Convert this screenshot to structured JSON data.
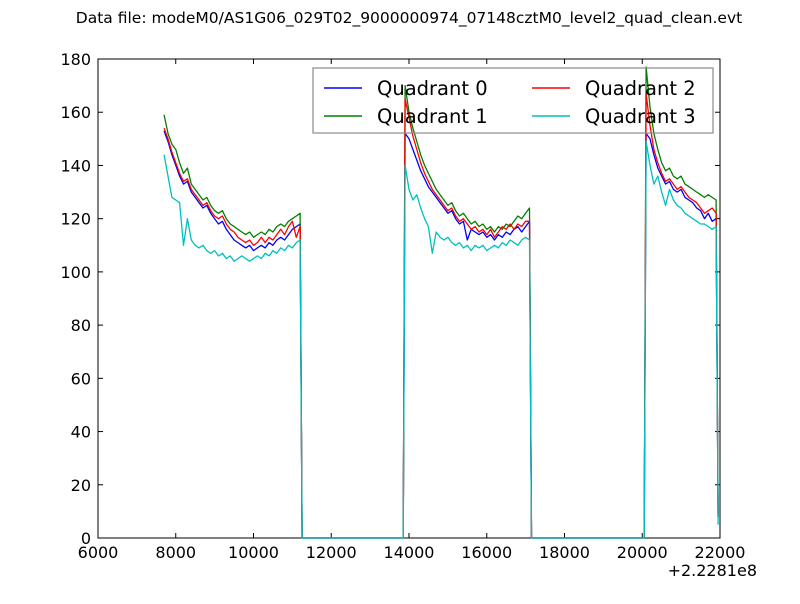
{
  "figure": {
    "title": "Data file: modeM0/AS1G06_029T02_9000000974_07148cztM0_level2_quad_clean.evt",
    "background": "#ffffff"
  },
  "chart_data": {
    "type": "line",
    "title": "Data file: modeM0/AS1G06_029T02_9000000974_07148cztM0_level2_quad_clean.evt",
    "xlabel": "",
    "ylabel": "",
    "xlim": [
      6000,
      22000
    ],
    "ylim": [
      0,
      180
    ],
    "x_ticks": [
      6000,
      8000,
      10000,
      12000,
      14000,
      16000,
      18000,
      20000,
      22000
    ],
    "y_ticks": [
      0,
      20,
      40,
      60,
      80,
      100,
      120,
      140,
      160,
      180
    ],
    "x_offset_label": "+2.2281e8",
    "grid": false,
    "legend": {
      "position": "upper center",
      "columns": 2,
      "frame": true,
      "transparent_background": true
    },
    "x": [
      7700,
      7800,
      7900,
      8000,
      8100,
      8200,
      8300,
      8400,
      8500,
      8600,
      8700,
      8800,
      8900,
      9000,
      9100,
      9200,
      9300,
      9400,
      9500,
      9600,
      9700,
      9800,
      9900,
      10000,
      10100,
      10200,
      10300,
      10400,
      10500,
      10600,
      10700,
      10800,
      10900,
      11000,
      11100,
      11200,
      11250,
      11500,
      12000,
      12500,
      13000,
      13500,
      13850,
      13900,
      14000,
      14100,
      14200,
      14300,
      14400,
      14500,
      14600,
      14700,
      14800,
      14900,
      15000,
      15100,
      15200,
      15300,
      15400,
      15500,
      15600,
      15700,
      15800,
      15900,
      16000,
      16100,
      16200,
      16300,
      16400,
      16500,
      16600,
      16700,
      16800,
      16900,
      17000,
      17100,
      17150,
      17500,
      18000,
      18500,
      19000,
      19500,
      20050,
      20100,
      20200,
      20300,
      20400,
      20500,
      20600,
      20700,
      20800,
      20900,
      21000,
      21100,
      21200,
      21300,
      21400,
      21500,
      21600,
      21700,
      21800,
      21900,
      21950
    ],
    "series": [
      {
        "name": "Quadrant 0",
        "color": "#0000ff",
        "values": [
          153,
          149,
          144,
          140,
          136,
          133,
          134,
          130,
          128,
          126,
          124,
          125,
          122,
          120,
          118,
          119,
          116,
          114,
          112,
          111,
          110,
          109,
          110,
          108,
          109,
          110,
          109,
          111,
          110,
          112,
          113,
          112,
          114,
          116,
          117,
          118,
          0,
          0,
          0,
          0,
          0,
          0,
          0,
          152,
          150,
          146,
          142,
          138,
          135,
          132,
          130,
          128,
          126,
          124,
          122,
          123,
          120,
          118,
          119,
          112,
          116,
          115,
          114,
          115,
          113,
          114,
          112,
          114,
          113,
          115,
          114,
          116,
          117,
          115,
          117,
          119,
          0,
          0,
          0,
          0,
          0,
          0,
          0,
          152,
          150,
          144,
          139,
          136,
          133,
          134,
          131,
          130,
          131,
          128,
          127,
          126,
          124,
          123,
          120,
          122,
          119,
          120,
          8
        ]
      },
      {
        "name": "Quadrant 1",
        "color": "#008000",
        "values": [
          159,
          152,
          148,
          146,
          141,
          137,
          139,
          133,
          131,
          129,
          127,
          128,
          125,
          123,
          122,
          123,
          120,
          118,
          117,
          116,
          115,
          114,
          115,
          113,
          114,
          115,
          114,
          116,
          115,
          117,
          118,
          117,
          119,
          120,
          121,
          122,
          0,
          0,
          0,
          0,
          0,
          0,
          0,
          170,
          160,
          154,
          149,
          144,
          140,
          137,
          134,
          131,
          129,
          127,
          125,
          126,
          123,
          121,
          122,
          120,
          118,
          119,
          117,
          118,
          116,
          117,
          115,
          117,
          116,
          118,
          117,
          119,
          121,
          120,
          122,
          124,
          0,
          0,
          0,
          0,
          0,
          0,
          0,
          177,
          162,
          152,
          146,
          141,
          138,
          139,
          136,
          135,
          136,
          133,
          132,
          131,
          130,
          129,
          128,
          129,
          128,
          127,
          9
        ]
      },
      {
        "name": "Quadrant 2",
        "color": "#ff0000",
        "values": [
          154,
          150,
          145,
          141,
          137,
          134,
          135,
          131,
          129,
          127,
          125,
          126,
          123,
          121,
          120,
          121,
          118,
          116,
          115,
          113,
          112,
          111,
          112,
          110,
          111,
          113,
          111,
          113,
          112,
          114,
          116,
          114,
          117,
          119,
          113,
          117,
          0,
          0,
          0,
          0,
          0,
          0,
          0,
          165,
          158,
          151,
          146,
          141,
          137,
          134,
          131,
          129,
          127,
          125,
          123,
          124,
          121,
          119,
          120,
          118,
          116,
          117,
          115,
          116,
          114,
          116,
          113,
          115,
          117,
          116,
          118,
          116,
          118,
          117,
          119,
          119,
          0,
          0,
          0,
          0,
          0,
          0,
          0,
          167,
          155,
          146,
          141,
          137,
          134,
          135,
          133,
          131,
          132,
          130,
          128,
          127,
          126,
          124,
          122,
          123,
          124,
          122,
          8
        ]
      },
      {
        "name": "Quadrant 3",
        "color": "#00bfbf",
        "values": [
          144,
          136,
          128,
          127,
          126,
          110,
          120,
          112,
          110,
          109,
          110,
          108,
          107,
          108,
          106,
          107,
          105,
          106,
          104,
          105,
          106,
          105,
          104,
          105,
          106,
          105,
          107,
          106,
          108,
          107,
          109,
          108,
          110,
          109,
          111,
          112,
          0,
          0,
          0,
          0,
          0,
          0,
          0,
          140,
          131,
          127,
          129,
          124,
          120,
          117,
          107,
          115,
          113,
          112,
          113,
          111,
          110,
          111,
          109,
          110,
          108,
          110,
          109,
          110,
          108,
          109,
          110,
          109,
          111,
          110,
          112,
          111,
          110,
          112,
          113,
          112,
          0,
          0,
          0,
          0,
          0,
          0,
          0,
          149,
          140,
          133,
          136,
          130,
          125,
          131,
          127,
          125,
          124,
          122,
          121,
          120,
          119,
          118,
          118,
          117,
          116,
          117,
          5
        ]
      }
    ]
  }
}
